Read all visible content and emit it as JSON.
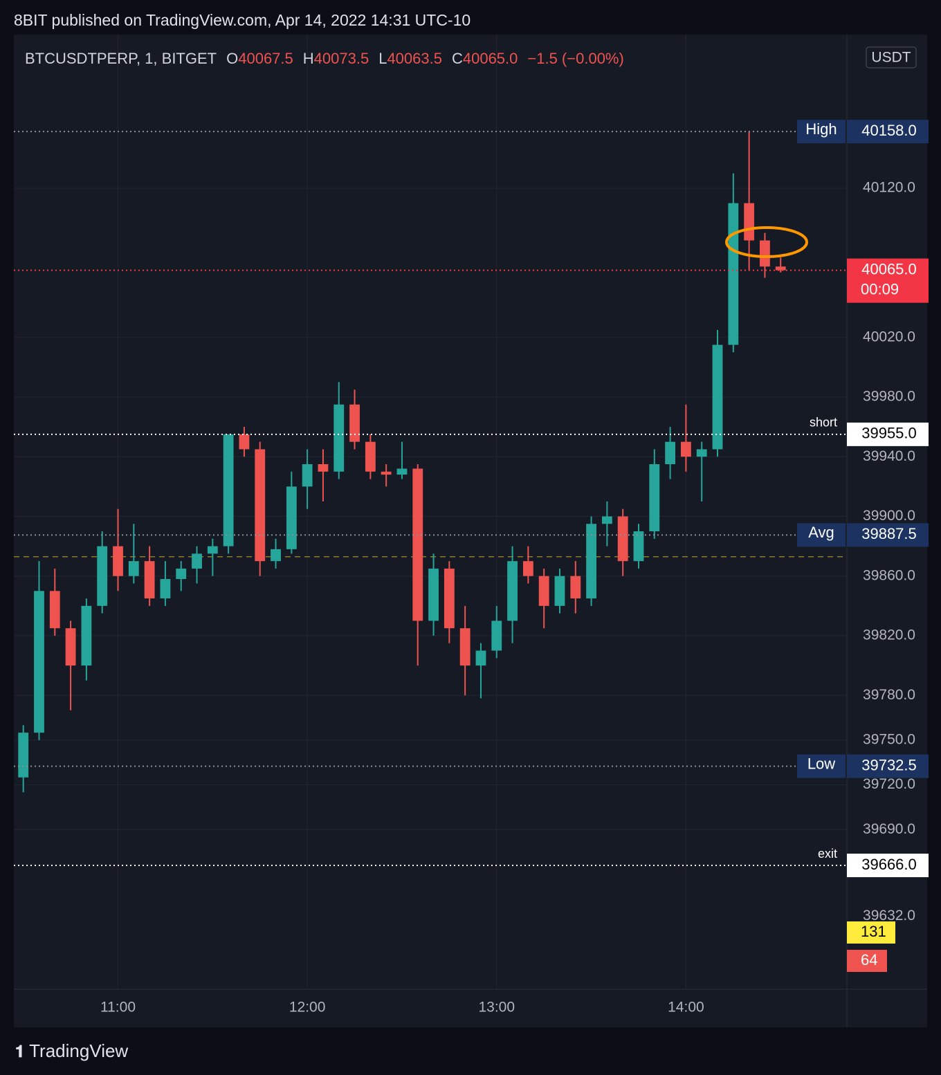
{
  "header": {
    "title": "8BIT published on TradingView.com, Apr 14, 2022 14:31 UTC-10",
    "footer": "TradingView"
  },
  "chart_data": {
    "type": "candlestick",
    "symbol": "BTCUSDTPERP, 1, BITGET",
    "ohlc_legend": [
      {
        "prefix": "O",
        "text": "40067.5"
      },
      {
        "prefix": "H",
        "text": "40073.5"
      },
      {
        "prefix": "L",
        "text": "40063.5"
      },
      {
        "prefix": "C",
        "text": "40065.0"
      }
    ],
    "change": "−1.5 (−0.00%)",
    "currency": "USDT",
    "up_color": "#26a69a",
    "down_color": "#ef5350",
    "x": [
      630,
      635,
      640,
      645,
      650,
      655,
      660,
      665,
      670,
      675,
      680,
      685,
      690,
      695,
      700,
      705,
      710,
      715,
      720,
      725,
      730,
      735,
      740,
      745,
      750,
      755,
      760,
      765,
      770,
      775,
      780,
      785,
      790,
      795,
      800,
      805,
      810,
      815,
      820,
      825,
      830,
      835,
      840,
      845,
      850,
      855,
      860,
      865,
      870
    ],
    "open": [
      39725,
      39755,
      39850,
      39825,
      39800,
      39840,
      39880,
      39860,
      39870,
      39845,
      39858,
      39865,
      39875,
      39880,
      39955,
      39945,
      39870,
      39878,
      39920,
      39935,
      39930,
      39975,
      39950,
      39930,
      39928,
      39932,
      39830,
      39865,
      39825,
      39800,
      39810,
      39830,
      39870,
      39860,
      39840,
      39860,
      39845,
      39895,
      39900,
      39870,
      39890,
      39935,
      39950,
      39940,
      39945,
      40015,
      40110,
      40085,
      40067.5
    ],
    "high": [
      39760,
      39870,
      39865,
      39830,
      39845,
      39890,
      39905,
      39895,
      39880,
      39870,
      39870,
      39880,
      39885,
      39955,
      39960,
      39950,
      39885,
      39930,
      39945,
      39945,
      39990,
      39985,
      39955,
      39935,
      39950,
      39935,
      39875,
      39870,
      39840,
      39815,
      39840,
      39880,
      39880,
      39865,
      39865,
      39870,
      39900,
      39910,
      39905,
      39895,
      39945,
      39960,
      39975,
      39950,
      40025,
      40130,
      40158,
      40090,
      40073.5
    ],
    "low": [
      39715,
      39750,
      39820,
      39770,
      39790,
      39835,
      39850,
      39855,
      39840,
      39840,
      39850,
      39855,
      39860,
      39875,
      39940,
      39860,
      39865,
      39875,
      39905,
      39910,
      39925,
      39945,
      39925,
      39920,
      39925,
      39800,
      39820,
      39815,
      39780,
      39778,
      39805,
      39815,
      39855,
      39825,
      39835,
      39835,
      39840,
      39880,
      39860,
      39865,
      39885,
      39925,
      39930,
      39910,
      39940,
      40010,
      40065,
      40060,
      40063.5
    ],
    "close": [
      39755,
      39850,
      39825,
      39800,
      39840,
      39880,
      39860,
      39870,
      39845,
      39858,
      39865,
      39875,
      39880,
      39955,
      39945,
      39870,
      39878,
      39920,
      39935,
      39930,
      39975,
      39950,
      39930,
      39928,
      39932,
      39830,
      39865,
      39825,
      39800,
      39810,
      39830,
      39870,
      39860,
      39840,
      39860,
      39845,
      39895,
      39900,
      39870,
      39890,
      39935,
      39950,
      39940,
      39945,
      40015,
      40110,
      40085,
      40067.5,
      40065
    ],
    "xlim": [
      627,
      891
    ],
    "xticks": [
      {
        "value": 660,
        "label": "11:00"
      },
      {
        "value": 720,
        "label": "12:00"
      },
      {
        "value": 780,
        "label": "13:00"
      },
      {
        "value": 840,
        "label": "14:00"
      }
    ],
    "ylim": [
      39583,
      40223
    ],
    "yticks": [
      {
        "value": 40120,
        "label": "40120.0"
      },
      {
        "value": 40020,
        "label": "40020.0"
      },
      {
        "value": 39980,
        "label": "39980.0"
      },
      {
        "value": 39940,
        "label": "39940.0"
      },
      {
        "value": 39900,
        "label": "39900.0"
      },
      {
        "value": 39860,
        "label": "39860.0"
      },
      {
        "value": 39820,
        "label": "39820.0"
      },
      {
        "value": 39780,
        "label": "39780.0"
      },
      {
        "value": 39750,
        "label": "39750.0"
      },
      {
        "value": 39720,
        "label": "39720.0"
      },
      {
        "value": 39690,
        "label": "39690.0"
      },
      {
        "value": 39632,
        "label": "39632.0"
      }
    ],
    "grid": true,
    "levels": [
      {
        "name": "High",
        "value": 40158,
        "label": "40158.0",
        "style": "navy"
      },
      {
        "value": 40065,
        "label": "40065.0",
        "countdown": "00:09",
        "style": "current"
      },
      {
        "name": "short",
        "value": 39955,
        "label": "39955.0",
        "style": "white"
      },
      {
        "name": "Avg",
        "value": 39887.5,
        "label": "39887.5",
        "style": "navy"
      },
      {
        "name": "Low",
        "value": 39732.5,
        "label": "39732.5",
        "style": "navy"
      },
      {
        "name": "exit",
        "value": 39666,
        "label": "39666.0",
        "style": "white"
      }
    ],
    "dashed_level": 39873,
    "volume_labels": [
      {
        "value": 131,
        "color": "#ffeb3b"
      },
      {
        "value": 64,
        "color": "#ef5350"
      }
    ]
  }
}
